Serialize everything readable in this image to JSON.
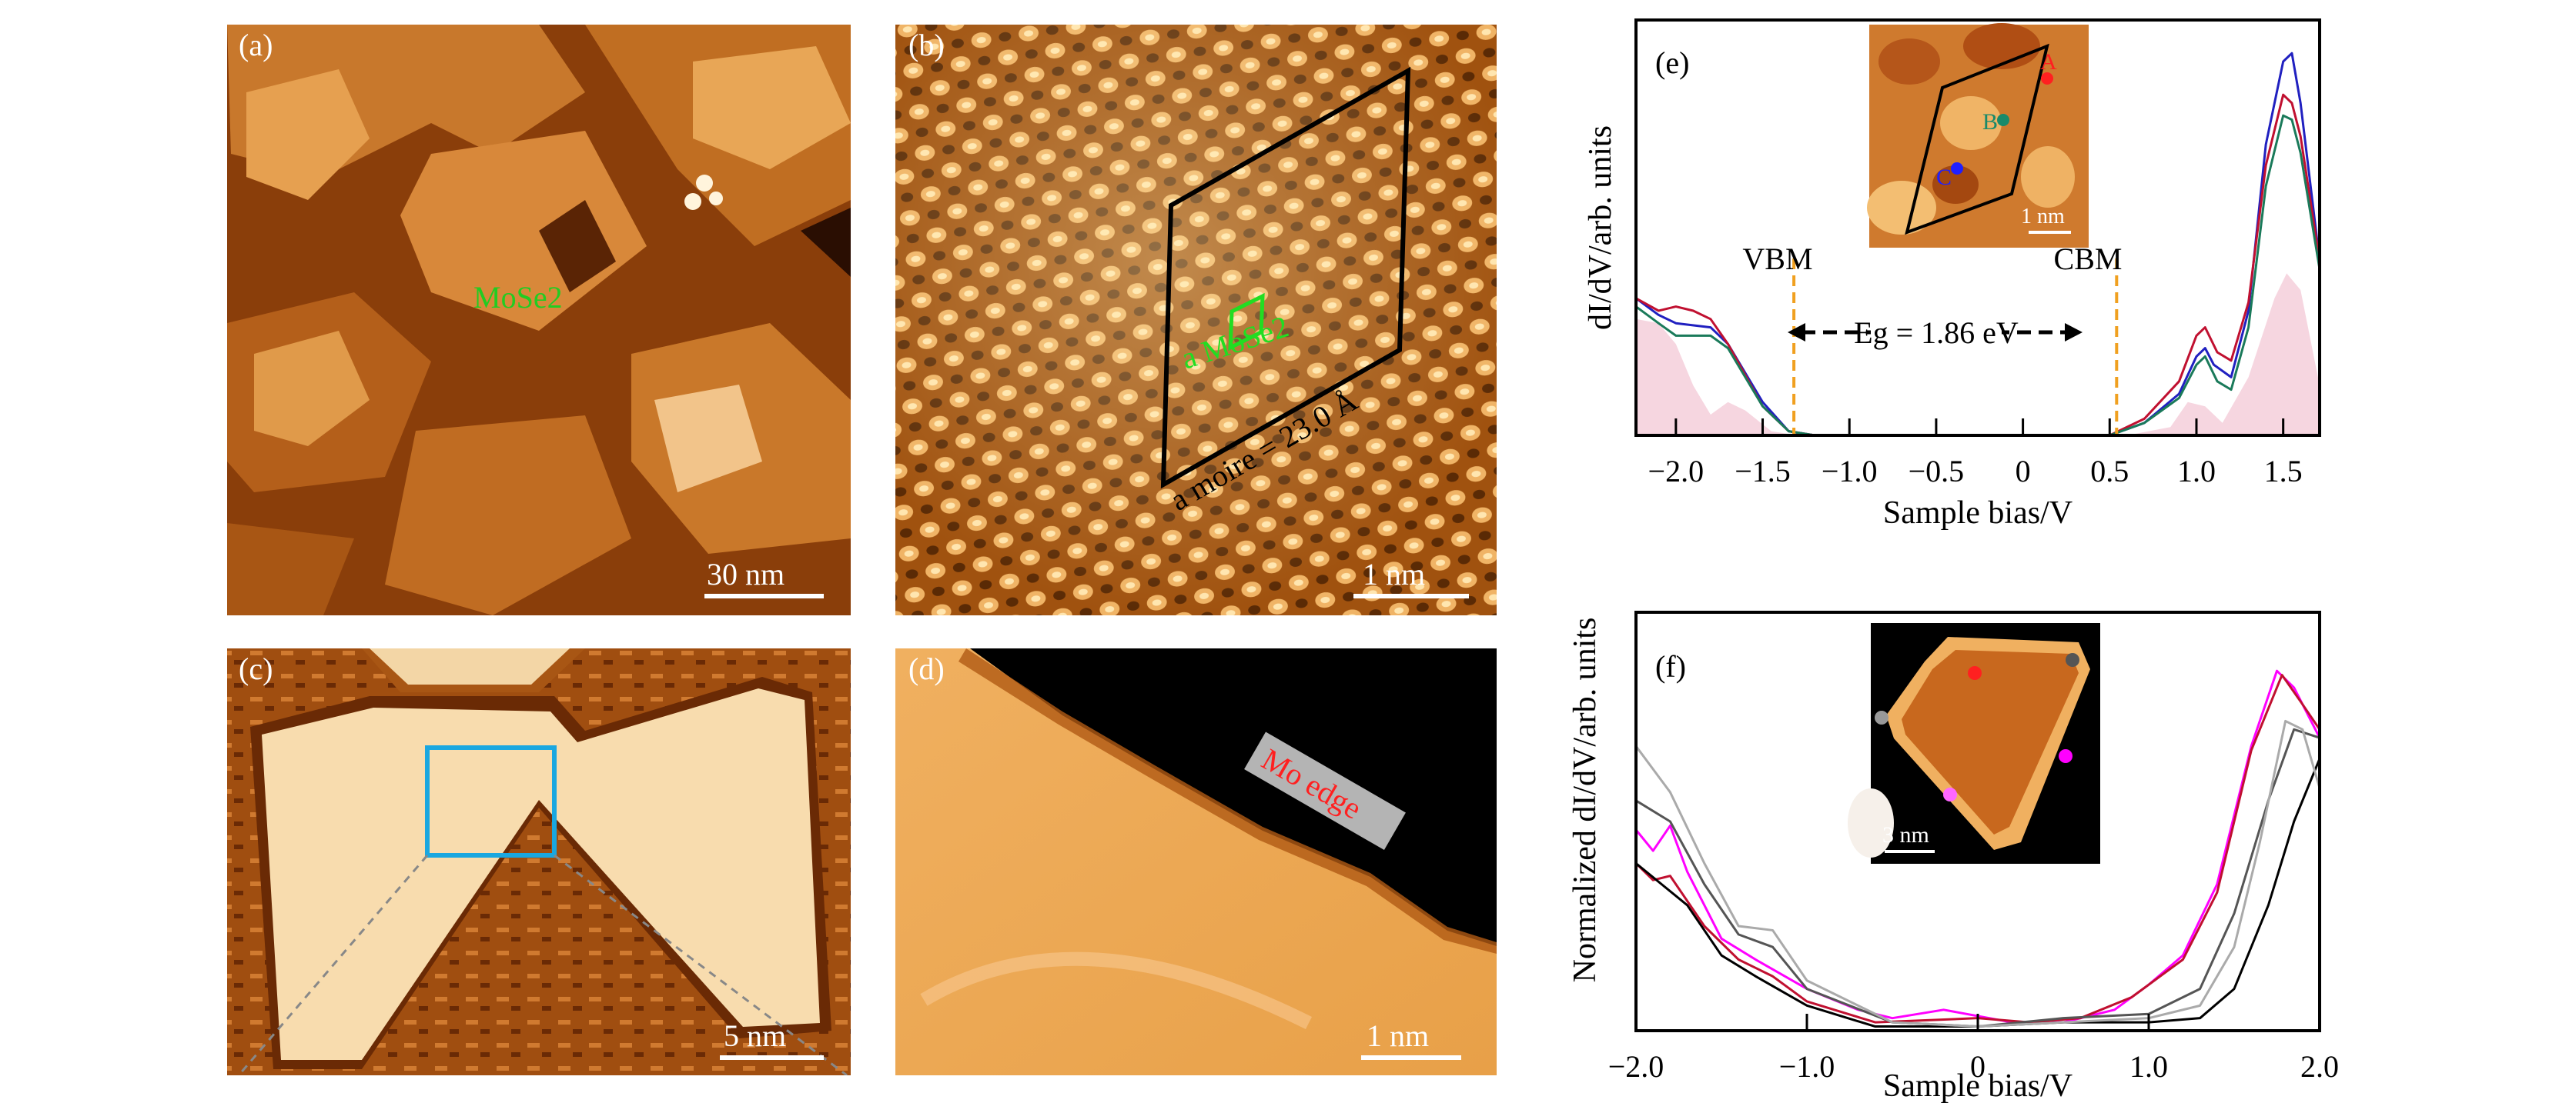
{
  "panels": {
    "a": {
      "label": "(a)",
      "annotation": "MoSe2",
      "annotation_color": "#22cc22",
      "scalebar": "30 nm"
    },
    "b": {
      "label": "(b)",
      "lattice_label": "a MoSe2",
      "moire_label": "a moire = 23.0 Å",
      "scalebar": "1 nm",
      "lattice_color": "#22dd22"
    },
    "c": {
      "label": "(c)",
      "scalebar": "5 nm",
      "box_color": "#1aa7e0"
    },
    "d": {
      "label": "(d)",
      "annotation": "Mo edge",
      "annotation_color": "#ff2020",
      "scalebar": "1 nm"
    },
    "e": {
      "label": "(e)",
      "inset_scalebar": "1 nm",
      "points": [
        "A",
        "B",
        "C"
      ],
      "point_colors": [
        "#ff2020",
        "#1a8a6a",
        "#2020ff"
      ],
      "vbm_label": "VBM",
      "cbm_label": "CBM",
      "gap_label": "Eg = 1.86 eV"
    },
    "f": {
      "label": "(f)",
      "inset_scalebar": "3 nm",
      "point_colors": [
        "#ff2020",
        "#555555",
        "#999999",
        "#ff00ff",
        "#ff66ff",
        "#000000"
      ]
    }
  },
  "chart_data": [
    {
      "type": "line",
      "panel": "e",
      "xlabel": "Sample bias/V",
      "ylabel": "dI/dV/arb. units",
      "xlim": [
        -2.23,
        1.71
      ],
      "xticks": [
        "−2.0",
        "−1.5",
        "−1.0",
        "−0.5",
        "0",
        "0.5",
        "1.0",
        "1.5"
      ],
      "xtick_values": [
        -2.0,
        -1.5,
        -1.0,
        -0.5,
        0,
        0.5,
        1.0,
        1.5
      ],
      "vlines": {
        "VBM": -1.32,
        "CBM": 0.54,
        "color": "#f0a020"
      },
      "series": [
        {
          "color": "#2020c0",
          "points": [
            [
              -2.23,
              0.33
            ],
            [
              -2.1,
              0.29
            ],
            [
              -2.0,
              0.27
            ],
            [
              -1.8,
              0.26
            ],
            [
              -1.7,
              0.22
            ],
            [
              -1.5,
              0.08
            ],
            [
              -1.35,
              0.01
            ],
            [
              -1.2,
              0
            ],
            [
              0.5,
              0
            ],
            [
              0.7,
              0.03
            ],
            [
              0.9,
              0.1
            ],
            [
              1.0,
              0.19
            ],
            [
              1.05,
              0.21
            ],
            [
              1.1,
              0.17
            ],
            [
              1.2,
              0.14
            ],
            [
              1.3,
              0.3
            ],
            [
              1.4,
              0.7
            ],
            [
              1.5,
              0.9
            ],
            [
              1.55,
              0.92
            ],
            [
              1.6,
              0.8
            ],
            [
              1.71,
              0.42
            ]
          ]
        },
        {
          "color": "#c01030",
          "points": [
            [
              -2.23,
              0.33
            ],
            [
              -2.1,
              0.3
            ],
            [
              -2.0,
              0.31
            ],
            [
              -1.9,
              0.3
            ],
            [
              -1.8,
              0.28
            ],
            [
              -1.7,
              0.22
            ],
            [
              -1.5,
              0.07
            ],
            [
              -1.35,
              0.01
            ],
            [
              -1.2,
              0
            ],
            [
              0.5,
              0
            ],
            [
              0.7,
              0.04
            ],
            [
              0.9,
              0.13
            ],
            [
              1.0,
              0.24
            ],
            [
              1.05,
              0.26
            ],
            [
              1.12,
              0.2
            ],
            [
              1.2,
              0.18
            ],
            [
              1.3,
              0.32
            ],
            [
              1.4,
              0.65
            ],
            [
              1.5,
              0.82
            ],
            [
              1.55,
              0.8
            ],
            [
              1.6,
              0.72
            ],
            [
              1.71,
              0.42
            ]
          ]
        },
        {
          "color": "#1a7a5a",
          "points": [
            [
              -2.23,
              0.31
            ],
            [
              -2.1,
              0.27
            ],
            [
              -2.0,
              0.24
            ],
            [
              -1.8,
              0.24
            ],
            [
              -1.7,
              0.21
            ],
            [
              -1.5,
              0.07
            ],
            [
              -1.35,
              0.01
            ],
            [
              -1.2,
              0
            ],
            [
              0.5,
              0
            ],
            [
              0.7,
              0.03
            ],
            [
              0.9,
              0.09
            ],
            [
              1.0,
              0.17
            ],
            [
              1.05,
              0.19
            ],
            [
              1.12,
              0.13
            ],
            [
              1.2,
              0.11
            ],
            [
              1.3,
              0.26
            ],
            [
              1.4,
              0.6
            ],
            [
              1.5,
              0.77
            ],
            [
              1.55,
              0.76
            ],
            [
              1.6,
              0.68
            ],
            [
              1.71,
              0.4
            ]
          ]
        }
      ],
      "fill": {
        "color": "#f6d6e0",
        "points": [
          [
            -2.23,
            0.28
          ],
          [
            -2.1,
            0.27
          ],
          [
            -2.0,
            0.22
          ],
          [
            -1.9,
            0.12
          ],
          [
            -1.8,
            0.05
          ],
          [
            -1.7,
            0.08
          ],
          [
            -1.6,
            0.06
          ],
          [
            -1.45,
            0.01
          ],
          [
            -1.3,
            0
          ],
          [
            0.6,
            0
          ],
          [
            0.85,
            0.02
          ],
          [
            0.95,
            0.08
          ],
          [
            1.05,
            0.07
          ],
          [
            1.15,
            0.03
          ],
          [
            1.3,
            0.14
          ],
          [
            1.45,
            0.33
          ],
          [
            1.52,
            0.39
          ],
          [
            1.6,
            0.35
          ],
          [
            1.71,
            0.12
          ]
        ]
      }
    },
    {
      "type": "line",
      "panel": "f",
      "xlabel": "Sample bias/V",
      "ylabel": "Normalized dI/dV/arb. units",
      "xlim": [
        -2.0,
        2.0
      ],
      "xticks": [
        "−2.0",
        "−1.0",
        "0",
        "1.0",
        "2.0"
      ],
      "xtick_values": [
        -2.0,
        -1.0,
        0,
        1.0,
        2.0
      ],
      "series": [
        {
          "color": "#ff00ff",
          "points": [
            [
              -2.0,
              0.48
            ],
            [
              -1.9,
              0.43
            ],
            [
              -1.8,
              0.49
            ],
            [
              -1.7,
              0.38
            ],
            [
              -1.5,
              0.22
            ],
            [
              -1.3,
              0.17
            ],
            [
              -1.0,
              0.1
            ],
            [
              -0.7,
              0.05
            ],
            [
              -0.5,
              0.03
            ],
            [
              -0.2,
              0.05
            ],
            [
              0.2,
              0.02
            ],
            [
              0.5,
              0.02
            ],
            [
              0.8,
              0.05
            ],
            [
              1.0,
              0.11
            ],
            [
              1.2,
              0.18
            ],
            [
              1.4,
              0.35
            ],
            [
              1.6,
              0.68
            ],
            [
              1.75,
              0.86
            ],
            [
              1.85,
              0.82
            ],
            [
              2.0,
              0.7
            ]
          ]
        },
        {
          "color": "#c01030",
          "points": [
            [
              -2.0,
              0.4
            ],
            [
              -1.9,
              0.36
            ],
            [
              -1.8,
              0.37
            ],
            [
              -1.6,
              0.25
            ],
            [
              -1.4,
              0.17
            ],
            [
              -1.2,
              0.13
            ],
            [
              -1.0,
              0.07
            ],
            [
              -0.6,
              0.02
            ],
            [
              0,
              0.03
            ],
            [
              0.3,
              0.02
            ],
            [
              0.6,
              0.03
            ],
            [
              0.9,
              0.08
            ],
            [
              1.2,
              0.17
            ],
            [
              1.4,
              0.33
            ],
            [
              1.6,
              0.67
            ],
            [
              1.78,
              0.85
            ],
            [
              1.9,
              0.78
            ],
            [
              2.0,
              0.72
            ]
          ]
        },
        {
          "color": "#000000",
          "points": [
            [
              -2.0,
              0.4
            ],
            [
              -1.85,
              0.35
            ],
            [
              -1.7,
              0.3
            ],
            [
              -1.5,
              0.18
            ],
            [
              -1.3,
              0.13
            ],
            [
              -1.0,
              0.06
            ],
            [
              -0.6,
              0.01
            ],
            [
              0,
              0.01
            ],
            [
              0.5,
              0.02
            ],
            [
              1.0,
              0.02
            ],
            [
              1.3,
              0.03
            ],
            [
              1.5,
              0.1
            ],
            [
              1.7,
              0.3
            ],
            [
              1.85,
              0.5
            ],
            [
              2.0,
              0.65
            ]
          ]
        },
        {
          "color": "#555555",
          "points": [
            [
              -2.0,
              0.55
            ],
            [
              -1.8,
              0.5
            ],
            [
              -1.6,
              0.35
            ],
            [
              -1.4,
              0.23
            ],
            [
              -1.2,
              0.2
            ],
            [
              -1.0,
              0.1
            ],
            [
              -0.5,
              0.02
            ],
            [
              0,
              0.01
            ],
            [
              0.5,
              0.03
            ],
            [
              1.0,
              0.04
            ],
            [
              1.3,
              0.1
            ],
            [
              1.5,
              0.28
            ],
            [
              1.7,
              0.55
            ],
            [
              1.85,
              0.72
            ],
            [
              2.0,
              0.7
            ]
          ]
        },
        {
          "color": "#aaaaaa",
          "points": [
            [
              -2.0,
              0.68
            ],
            [
              -1.8,
              0.57
            ],
            [
              -1.6,
              0.4
            ],
            [
              -1.4,
              0.25
            ],
            [
              -1.2,
              0.24
            ],
            [
              -1.0,
              0.12
            ],
            [
              -0.5,
              0.02
            ],
            [
              0,
              0.01
            ],
            [
              0.5,
              0.02
            ],
            [
              1.0,
              0.03
            ],
            [
              1.3,
              0.06
            ],
            [
              1.5,
              0.2
            ],
            [
              1.65,
              0.45
            ],
            [
              1.8,
              0.74
            ],
            [
              1.9,
              0.72
            ],
            [
              2.0,
              0.58
            ]
          ]
        }
      ]
    }
  ]
}
